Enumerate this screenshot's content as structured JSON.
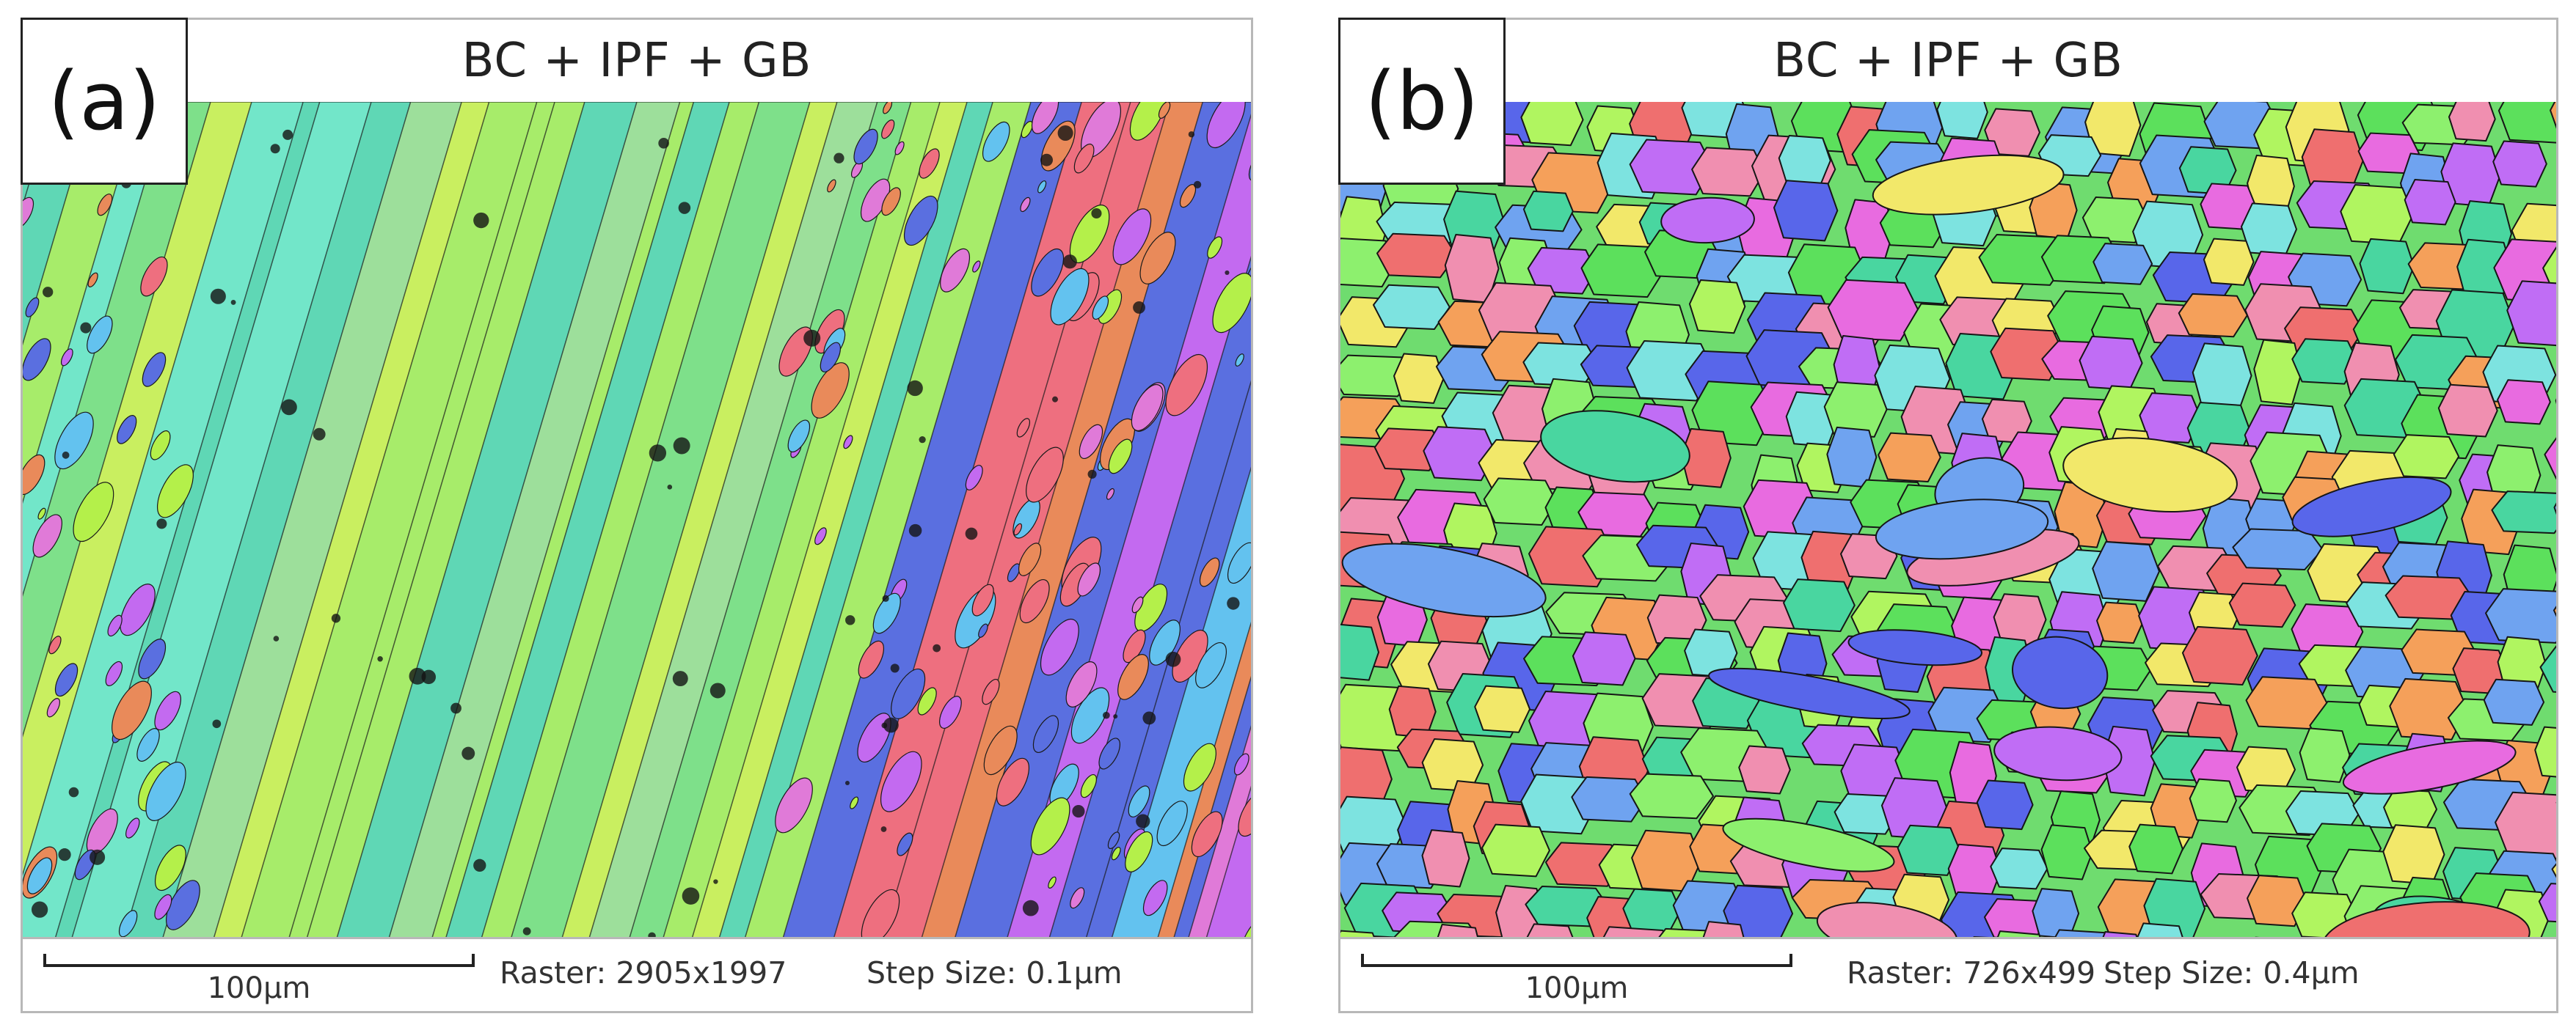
{
  "panels": [
    {
      "letter": "(a)",
      "title": "BC + IPF + GB",
      "scale_label": "100µm",
      "raster": "Raster: 2905x1997",
      "step_size": "Step Size: 0.1µm",
      "map_style": "columnar-laths",
      "palette": [
        "#7ee08a",
        "#a7ec6a",
        "#c9ef60",
        "#5fd7b5",
        "#72e6c9",
        "#9ddf9b",
        "#e07ad8",
        "#c36af0",
        "#5a6fe0",
        "#ee6f7f",
        "#e98a5a",
        "#63c2ef",
        "#b4f04a"
      ]
    },
    {
      "letter": "(b)",
      "title": "BC + IPF + GB",
      "scale_label": "100µm",
      "raster": "Raster: 726x499",
      "step_size": "Step Size: 0.4µm",
      "map_style": "equiaxed-grains",
      "palette": [
        "#5ce05c",
        "#8df06e",
        "#e86be0",
        "#c06df5",
        "#5866ea",
        "#6fa3f0",
        "#ef6f6f",
        "#f5a05a",
        "#f2e86a",
        "#7de3e0",
        "#b0f560",
        "#f08fb0",
        "#49d6a0"
      ]
    }
  ]
}
